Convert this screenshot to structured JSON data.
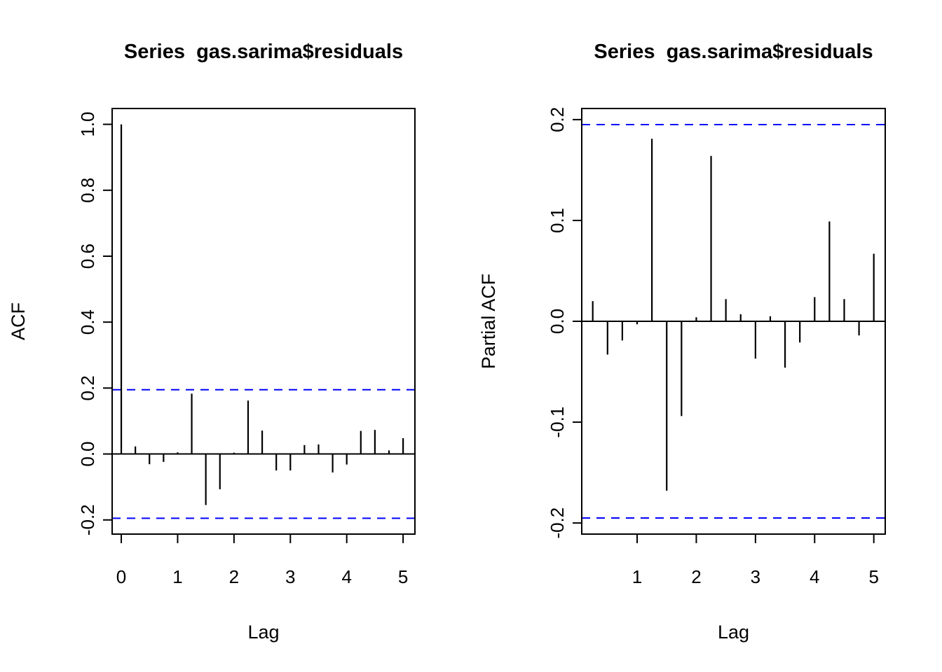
{
  "page": {
    "background": "#ffffff",
    "foreground": "#000000"
  },
  "chart_data": [
    {
      "type": "bar",
      "style": "stick-acf",
      "title": "Series  gas.sarima$residuals",
      "xlabel": "Lag",
      "ylabel": "ACF",
      "xlim": [
        -0.162,
        5.21
      ],
      "ylim": [
        -0.243,
        1.048
      ],
      "x_ticks": {
        "values": [
          0,
          1,
          2,
          3,
          4,
          5
        ],
        "labels": [
          "0",
          "1",
          "2",
          "3",
          "4",
          "5"
        ]
      },
      "y_ticks": {
        "values": [
          1.0,
          0.8,
          0.6,
          0.4,
          0.2,
          0.0,
          -0.2
        ],
        "labels": [
          "1.0",
          "0.8",
          "0.6",
          "0.4",
          "0.2",
          "0.0",
          "-0.2"
        ]
      },
      "grid": false,
      "conf_limit": 0.195,
      "conf_line_color": "#0000FF",
      "conf_line_style": "dashed",
      "bar_color": "#000000",
      "lag_step_years": 0.25,
      "points": [
        {
          "lag": 0.0,
          "value": 1.0
        },
        {
          "lag": 0.25,
          "value": 0.023
        },
        {
          "lag": 0.5,
          "value": -0.031
        },
        {
          "lag": 0.75,
          "value": -0.024
        },
        {
          "lag": 1.0,
          "value": 0.005
        },
        {
          "lag": 1.25,
          "value": 0.183
        },
        {
          "lag": 1.5,
          "value": -0.155
        },
        {
          "lag": 1.75,
          "value": -0.107
        },
        {
          "lag": 2.0,
          "value": 0.004
        },
        {
          "lag": 2.25,
          "value": 0.162
        },
        {
          "lag": 2.5,
          "value": 0.071
        },
        {
          "lag": 2.75,
          "value": -0.05
        },
        {
          "lag": 3.0,
          "value": -0.05
        },
        {
          "lag": 3.25,
          "value": 0.027
        },
        {
          "lag": 3.5,
          "value": 0.029
        },
        {
          "lag": 3.75,
          "value": -0.056
        },
        {
          "lag": 4.0,
          "value": -0.032
        },
        {
          "lag": 4.25,
          "value": 0.07
        },
        {
          "lag": 4.5,
          "value": 0.073
        },
        {
          "lag": 4.75,
          "value": 0.011
        },
        {
          "lag": 5.0,
          "value": 0.048
        }
      ]
    },
    {
      "type": "bar",
      "style": "stick-pacf",
      "title": "Series  gas.sarima$residuals",
      "xlabel": "Lag",
      "ylabel": "Partial ACF",
      "xlim": [
        0.064,
        5.193
      ],
      "ylim": [
        -0.211,
        0.211
      ],
      "x_ticks": {
        "values": [
          1,
          2,
          3,
          4,
          5
        ],
        "labels": [
          "1",
          "2",
          "3",
          "4",
          "5"
        ]
      },
      "y_ticks": {
        "values": [
          0.2,
          0.1,
          0.0,
          -0.1,
          -0.2
        ],
        "labels": [
          "0.2",
          "0.1",
          "0.0",
          "-0.1",
          "-0.2"
        ]
      },
      "grid": false,
      "conf_limit": 0.195,
      "conf_line_color": "#0000FF",
      "conf_line_style": "dashed",
      "bar_color": "#000000",
      "lag_step_years": 0.25,
      "points": [
        {
          "lag": 0.25,
          "value": 0.02
        },
        {
          "lag": 0.5,
          "value": -0.033
        },
        {
          "lag": 0.75,
          "value": -0.019
        },
        {
          "lag": 1.0,
          "value": -0.003
        },
        {
          "lag": 1.25,
          "value": 0.181
        },
        {
          "lag": 1.5,
          "value": -0.168
        },
        {
          "lag": 1.75,
          "value": -0.094
        },
        {
          "lag": 2.0,
          "value": 0.004
        },
        {
          "lag": 2.25,
          "value": 0.164
        },
        {
          "lag": 2.5,
          "value": 0.022
        },
        {
          "lag": 2.75,
          "value": 0.007
        },
        {
          "lag": 3.0,
          "value": -0.037
        },
        {
          "lag": 3.25,
          "value": 0.005
        },
        {
          "lag": 3.5,
          "value": -0.046
        },
        {
          "lag": 3.75,
          "value": -0.021
        },
        {
          "lag": 4.0,
          "value": 0.024
        },
        {
          "lag": 4.25,
          "value": 0.099
        },
        {
          "lag": 4.5,
          "value": 0.022
        },
        {
          "lag": 4.75,
          "value": -0.014
        },
        {
          "lag": 5.0,
          "value": 0.067
        }
      ]
    }
  ]
}
